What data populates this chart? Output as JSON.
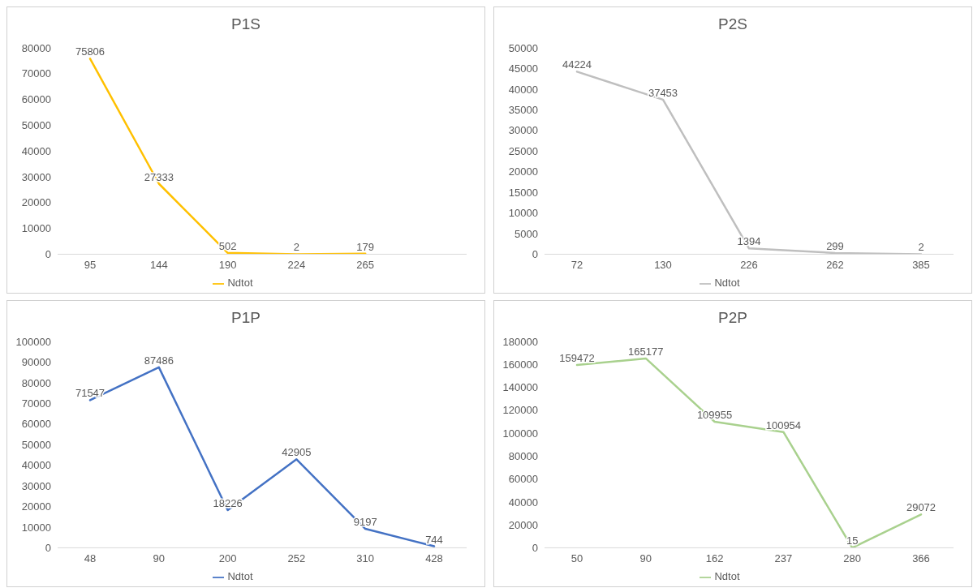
{
  "chart_data": [
    {
      "type": "line",
      "title": "P1S",
      "categories": [
        "95",
        "144",
        "190",
        "224",
        "265",
        null
      ],
      "series": [
        {
          "name": "Ndtot",
          "color": "#ffc000",
          "values": [
            75806,
            27333,
            502,
            2,
            179,
            null
          ]
        }
      ],
      "ylim": [
        0,
        80000
      ],
      "yticks": [
        0,
        10000,
        20000,
        30000,
        40000,
        50000,
        60000,
        70000,
        80000
      ],
      "data_labels": true,
      "legend": "bottom",
      "marker": "none"
    },
    {
      "type": "line",
      "title": "P2S",
      "categories": [
        "72",
        "130",
        "226",
        "262",
        "385"
      ],
      "series": [
        {
          "name": "Ndtot",
          "color": "#bfbfbf",
          "values": [
            44224,
            37453,
            1394,
            299,
            2
          ]
        }
      ],
      "ylim": [
        0,
        50000
      ],
      "yticks": [
        0,
        5000,
        10000,
        15000,
        20000,
        25000,
        30000,
        35000,
        40000,
        45000,
        50000
      ],
      "data_labels": true,
      "legend": "bottom",
      "marker": "none"
    },
    {
      "type": "line",
      "title": "P1P",
      "categories": [
        "48",
        "90",
        "200",
        "252",
        "310",
        "428"
      ],
      "series": [
        {
          "name": "Ndtot",
          "color": "#4472c4",
          "values": [
            71547,
            87486,
            18226,
            42905,
            9197,
            744
          ]
        }
      ],
      "ylim": [
        0,
        100000
      ],
      "yticks": [
        0,
        10000,
        20000,
        30000,
        40000,
        50000,
        60000,
        70000,
        80000,
        90000,
        100000
      ],
      "data_labels": true,
      "legend": "bottom",
      "marker": "none"
    },
    {
      "type": "line",
      "title": "P2P",
      "categories": [
        "50",
        "90",
        "162",
        "237",
        "280",
        "366"
      ],
      "series": [
        {
          "name": "Ndtot",
          "color": "#a9d18e",
          "values": [
            159472,
            165177,
            109955,
            100954,
            15,
            29072
          ]
        }
      ],
      "ylim": [
        0,
        180000
      ],
      "yticks": [
        0,
        20000,
        40000,
        60000,
        80000,
        100000,
        120000,
        140000,
        160000,
        180000
      ],
      "data_labels": true,
      "legend": "bottom",
      "marker": "none"
    }
  ]
}
